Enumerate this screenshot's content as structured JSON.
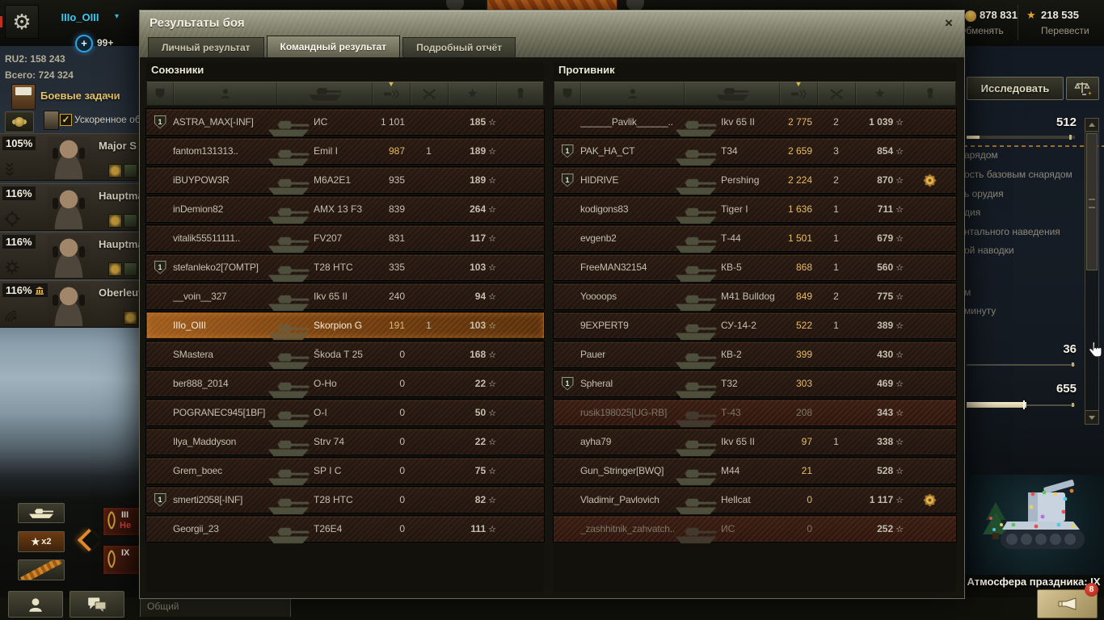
{
  "icons": {
    "gear": "⚙",
    "caret": "▾",
    "plus": "+",
    "close": "×",
    "check": "✓",
    "star_filled": "★",
    "star_outline": "☆",
    "sort_down": "▼"
  },
  "top_bar": {
    "player_name": "IIIo_OIII",
    "notifications": "99+",
    "reserve_counter": "RU2: 158 243",
    "total_counter": "Всего: 724 324",
    "gold_amount": "878 831",
    "gold_action": "Обменять",
    "free_xp_amount": "218 535",
    "free_xp_action": "Перевести"
  },
  "left_panel": {
    "missions_label": "Боевые задачи",
    "accelerated_training_label": "Ускоренное об",
    "crew": [
      {
        "percent": "105%",
        "name": "Major S"
      },
      {
        "percent": "116%",
        "name": "Hauptma"
      },
      {
        "percent": "116%",
        "name": "Hauptma"
      },
      {
        "percent": "116%",
        "name": "Oberleut"
      }
    ],
    "multiplier_label": "x2",
    "reserve_cards": [
      {
        "level": "III",
        "note": "Не"
      },
      {
        "level": "IX",
        "note": ""
      }
    ]
  },
  "right_panel": {
    "research_button": "Исследовать",
    "value_top": "512",
    "spec_lines": [
      "арядом",
      "ость базовым снарядом",
      "ь орудия",
      "дия",
      "нтального наведения",
      "ой наводки",
      "м",
      "минуту"
    ],
    "value_mid": "36",
    "value_bottom": "655",
    "holiday_label": "Атмосфера праздника: IX",
    "notification_badge": "8"
  },
  "chat_tab_label": "Общий",
  "dialog": {
    "title": "Результаты боя",
    "tabs": [
      {
        "label": "Личный результат",
        "active": false
      },
      {
        "label": "Командный результат",
        "active": true
      },
      {
        "label": "Подробный отчёт",
        "active": false
      }
    ],
    "allies": {
      "title": "Союзники",
      "rows": [
        {
          "platoon": "1",
          "player": "ASTRA_MAX[-INF]",
          "vehicle": "ИС",
          "dmg": "1 101",
          "dmg_hot": false,
          "frags": "",
          "xp": "185",
          "self": false,
          "left": false,
          "medal": false
        },
        {
          "platoon": "",
          "player": "fantom131313..",
          "vehicle": "Emil I",
          "dmg": "987",
          "dmg_hot": true,
          "frags": "1",
          "xp": "189",
          "self": false,
          "left": false,
          "medal": false
        },
        {
          "platoon": "",
          "player": "iBUYPOW3R",
          "vehicle": "M6A2E1",
          "dmg": "935",
          "dmg_hot": false,
          "frags": "",
          "xp": "189",
          "self": false,
          "left": false,
          "medal": false
        },
        {
          "platoon": "",
          "player": "inDemion82",
          "vehicle": "AMX 13 F3",
          "dmg": "839",
          "dmg_hot": false,
          "frags": "",
          "xp": "264",
          "self": false,
          "left": false,
          "medal": false
        },
        {
          "platoon": "",
          "player": "vitalik55511111..",
          "vehicle": "FV207",
          "dmg": "831",
          "dmg_hot": false,
          "frags": "",
          "xp": "117",
          "self": false,
          "left": false,
          "medal": false
        },
        {
          "platoon": "1",
          "player": "stefanleko2[7OMTP]",
          "vehicle": "T28 HTC",
          "dmg": "335",
          "dmg_hot": false,
          "frags": "",
          "xp": "103",
          "self": false,
          "left": false,
          "medal": false
        },
        {
          "platoon": "",
          "player": "__voin__327",
          "vehicle": "Ikv 65 II",
          "dmg": "240",
          "dmg_hot": false,
          "frags": "",
          "xp": "94",
          "self": false,
          "left": false,
          "medal": false
        },
        {
          "platoon": "",
          "player": "IIIo_OIII",
          "vehicle": "Skorpion G",
          "dmg": "191",
          "dmg_hot": false,
          "frags": "1",
          "xp": "103",
          "self": true,
          "left": false,
          "medal": false
        },
        {
          "platoon": "",
          "player": "SMastera",
          "vehicle": "Škoda T 25",
          "dmg": "0",
          "dmg_hot": false,
          "frags": "",
          "xp": "168",
          "self": false,
          "left": false,
          "medal": false
        },
        {
          "platoon": "",
          "player": "ber888_2014",
          "vehicle": "O-Ho",
          "dmg": "0",
          "dmg_hot": false,
          "frags": "",
          "xp": "22",
          "self": false,
          "left": false,
          "medal": false
        },
        {
          "platoon": "",
          "player": "POGRANEC945[1BF]",
          "vehicle": "O-I",
          "dmg": "0",
          "dmg_hot": false,
          "frags": "",
          "xp": "50",
          "self": false,
          "left": false,
          "medal": false
        },
        {
          "platoon": "",
          "player": "Ilya_Maddyson",
          "vehicle": "Strv 74",
          "dmg": "0",
          "dmg_hot": false,
          "frags": "",
          "xp": "22",
          "self": false,
          "left": false,
          "medal": false
        },
        {
          "platoon": "",
          "player": "Grem_boec",
          "vehicle": "SP I C",
          "dmg": "0",
          "dmg_hot": false,
          "frags": "",
          "xp": "75",
          "self": false,
          "left": false,
          "medal": false
        },
        {
          "platoon": "1",
          "player": "smerti2058[-INF]",
          "vehicle": "T28 HTC",
          "dmg": "0",
          "dmg_hot": false,
          "frags": "",
          "xp": "82",
          "self": false,
          "left": false,
          "medal": false
        },
        {
          "platoon": "",
          "player": "Georgii_23",
          "vehicle": "T26E4",
          "dmg": "0",
          "dmg_hot": false,
          "frags": "",
          "xp": "111",
          "self": false,
          "left": false,
          "medal": false
        }
      ]
    },
    "enemies": {
      "title": "Противник",
      "rows": [
        {
          "platoon": "",
          "player": "______Pavlik______..",
          "vehicle": "Ikv 65 II",
          "dmg": "2 775",
          "dmg_hot": true,
          "frags": "2",
          "xp": "1 039",
          "self": false,
          "left": false,
          "medal": false
        },
        {
          "platoon": "1",
          "player": "PAK_HA_CT",
          "vehicle": "T34",
          "dmg": "2 659",
          "dmg_hot": true,
          "frags": "3",
          "xp": "854",
          "self": false,
          "left": false,
          "medal": false
        },
        {
          "platoon": "1",
          "player": "HIDRIVE",
          "vehicle": "Pershing",
          "dmg": "2 224",
          "dmg_hot": true,
          "frags": "2",
          "xp": "870",
          "self": false,
          "left": false,
          "medal": true
        },
        {
          "platoon": "",
          "player": "kodigons83",
          "vehicle": "Tiger I",
          "dmg": "1 636",
          "dmg_hot": true,
          "frags": "1",
          "xp": "711",
          "self": false,
          "left": false,
          "medal": false
        },
        {
          "platoon": "",
          "player": "evgenb2",
          "vehicle": "Т-44",
          "dmg": "1 501",
          "dmg_hot": true,
          "frags": "1",
          "xp": "679",
          "self": false,
          "left": false,
          "medal": false
        },
        {
          "platoon": "",
          "player": "FreeMAN32154",
          "vehicle": "КВ-5",
          "dmg": "868",
          "dmg_hot": true,
          "frags": "1",
          "xp": "560",
          "self": false,
          "left": false,
          "medal": false
        },
        {
          "platoon": "",
          "player": "Yoooops",
          "vehicle": "M41 Bulldog",
          "dmg": "849",
          "dmg_hot": true,
          "frags": "2",
          "xp": "775",
          "self": false,
          "left": false,
          "medal": false
        },
        {
          "platoon": "",
          "player": "9EXPERT9",
          "vehicle": "СУ-14-2",
          "dmg": "522",
          "dmg_hot": true,
          "frags": "1",
          "xp": "389",
          "self": false,
          "left": false,
          "medal": false
        },
        {
          "platoon": "",
          "player": "Pauer",
          "vehicle": "КВ-2",
          "dmg": "399",
          "dmg_hot": true,
          "frags": "",
          "xp": "430",
          "self": false,
          "left": false,
          "medal": false
        },
        {
          "platoon": "1",
          "player": "Spheral",
          "vehicle": "T32",
          "dmg": "303",
          "dmg_hot": true,
          "frags": "",
          "xp": "469",
          "self": false,
          "left": false,
          "medal": false
        },
        {
          "platoon": "",
          "player": "rusik198025[UG-RB]",
          "vehicle": "Т-43",
          "dmg": "208",
          "dmg_hot": false,
          "frags": "",
          "xp": "343",
          "self": false,
          "left": true,
          "medal": false
        },
        {
          "platoon": "",
          "player": "ayha79",
          "vehicle": "Ikv 65 II",
          "dmg": "97",
          "dmg_hot": true,
          "frags": "1",
          "xp": "338",
          "self": false,
          "left": false,
          "medal": false
        },
        {
          "platoon": "",
          "player": "Gun_Stringer[BWQ]",
          "vehicle": "M44",
          "dmg": "21",
          "dmg_hot": true,
          "frags": "",
          "xp": "528",
          "self": false,
          "left": false,
          "medal": false
        },
        {
          "platoon": "",
          "player": "Vladimir_Pavlovich",
          "vehicle": "Hellcat",
          "dmg": "0",
          "dmg_hot": true,
          "frags": "",
          "xp": "1 117",
          "self": false,
          "left": false,
          "medal": true
        },
        {
          "platoon": "",
          "player": "_zashhitnik_zahvatch..",
          "vehicle": "ИС",
          "dmg": "0",
          "dmg_hot": false,
          "frags": "",
          "xp": "252",
          "self": false,
          "left": true,
          "medal": false
        }
      ]
    }
  }
}
